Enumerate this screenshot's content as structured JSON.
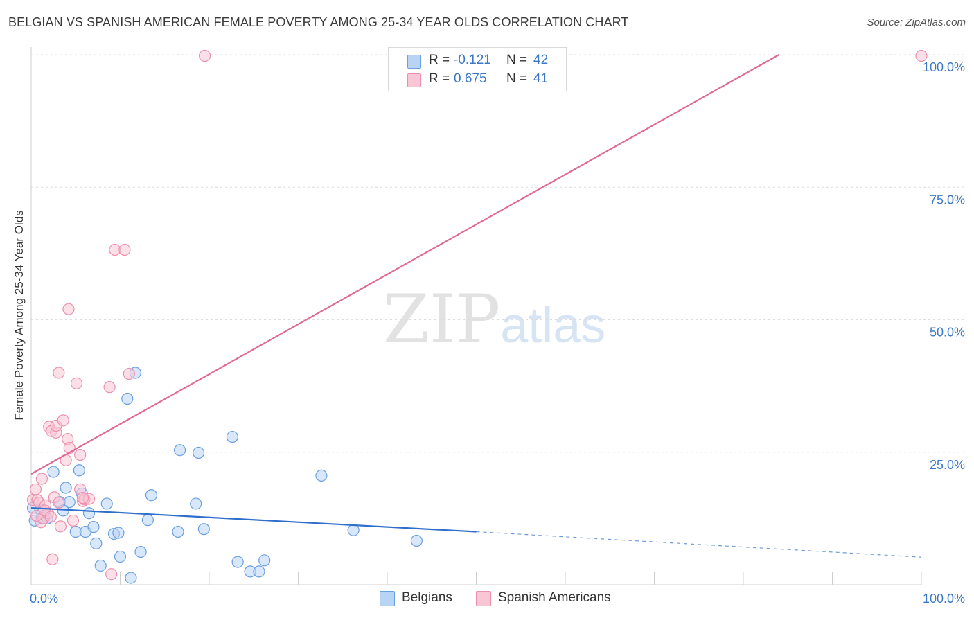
{
  "title": "BELGIAN VS SPANISH AMERICAN FEMALE POVERTY AMONG 25-34 YEAR OLDS CORRELATION CHART",
  "source": "Source: ZipAtlas.com",
  "watermark": {
    "zip": "ZIP",
    "atlas": "atlas"
  },
  "legend": {
    "rows": [
      {
        "r_label": "R =",
        "r_value": "-0.121",
        "n_label": "N =",
        "n_value": "42"
      },
      {
        "r_label": "R =",
        "r_value": "0.675",
        "n_label": "N =",
        "n_value": "41"
      }
    ]
  },
  "bottom_legend": [
    "Belgians",
    "Spanish Americans"
  ],
  "chart_data": {
    "type": "scatter",
    "title": "BELGIAN VS SPANISH AMERICAN FEMALE POVERTY AMONG 25-34 YEAR OLDS CORRELATION CHART",
    "xlabel": "",
    "ylabel": "Female Poverty Among 25-34 Year Olds",
    "xlim": [
      0,
      100
    ],
    "ylim": [
      0,
      100
    ],
    "x_tick_labels": [
      "0.0%",
      "100.0%"
    ],
    "y_ticks": [
      25,
      50,
      75,
      100
    ],
    "y_tick_labels": [
      "25.0%",
      "50.0%",
      "75.0%",
      "100.0%"
    ],
    "grid": true,
    "legend_position": "top-center",
    "colors": {
      "belgians_fill": "#b8d4f5",
      "belgians_stroke": "#6a9fe0",
      "belgians_line": "#2f6fcb",
      "spanish_fill": "#f9c6d6",
      "spanish_stroke": "#ec8fae",
      "spanish_line": "#e06a93",
      "tick_label": "#3b78c9"
    },
    "series": [
      {
        "name": "Belgians",
        "points": [
          [
            0.4,
            12.1
          ],
          [
            1.0,
            14.2
          ],
          [
            1.2,
            12.6
          ],
          [
            1.5,
            13.1
          ],
          [
            2.5,
            21.3
          ],
          [
            3.2,
            15.6
          ],
          [
            3.6,
            14.0
          ],
          [
            3.9,
            18.3
          ],
          [
            4.3,
            15.6
          ],
          [
            5.0,
            10.0
          ],
          [
            5.4,
            21.6
          ],
          [
            5.7,
            17.2
          ],
          [
            6.1,
            10.0
          ],
          [
            6.5,
            13.5
          ],
          [
            7.0,
            10.9
          ],
          [
            7.3,
            7.8
          ],
          [
            7.8,
            3.6
          ],
          [
            8.5,
            15.3
          ],
          [
            9.3,
            9.6
          ],
          [
            9.8,
            9.8
          ],
          [
            10.0,
            5.3
          ],
          [
            10.8,
            35.1
          ],
          [
            11.2,
            1.3
          ],
          [
            11.7,
            40.0
          ],
          [
            12.3,
            6.2
          ],
          [
            13.1,
            12.2
          ],
          [
            13.5,
            16.9
          ],
          [
            16.5,
            10.0
          ],
          [
            16.7,
            25.4
          ],
          [
            18.5,
            15.3
          ],
          [
            18.8,
            24.9
          ],
          [
            19.4,
            10.5
          ],
          [
            22.6,
            27.9
          ],
          [
            23.2,
            4.3
          ],
          [
            24.6,
            2.5
          ],
          [
            25.6,
            2.5
          ],
          [
            26.2,
            4.6
          ],
          [
            32.6,
            20.6
          ],
          [
            36.2,
            10.3
          ],
          [
            43.3,
            8.3
          ],
          [
            1.8,
            12.5
          ],
          [
            0.2,
            14.5
          ]
        ]
      },
      {
        "name": "Spanish Americans",
        "points": [
          [
            0.2,
            16.0
          ],
          [
            0.5,
            18.0
          ],
          [
            0.7,
            16.0
          ],
          [
            0.9,
            15.5
          ],
          [
            1.1,
            11.8
          ],
          [
            1.2,
            20.0
          ],
          [
            1.4,
            12.5
          ],
          [
            1.6,
            15.0
          ],
          [
            1.9,
            13.5
          ],
          [
            2.0,
            29.8
          ],
          [
            2.3,
            29.0
          ],
          [
            2.4,
            4.8
          ],
          [
            2.6,
            16.5
          ],
          [
            2.8,
            28.7
          ],
          [
            2.8,
            30.0
          ],
          [
            3.1,
            15.5
          ],
          [
            3.1,
            40.0
          ],
          [
            3.3,
            11.0
          ],
          [
            3.6,
            31.0
          ],
          [
            3.9,
            23.5
          ],
          [
            4.1,
            27.5
          ],
          [
            4.2,
            52.0
          ],
          [
            4.3,
            25.8
          ],
          [
            4.7,
            12.1
          ],
          [
            5.1,
            38.0
          ],
          [
            5.5,
            24.5
          ],
          [
            5.5,
            18.0
          ],
          [
            5.8,
            15.8
          ],
          [
            6.0,
            16.1
          ],
          [
            6.5,
            16.2
          ],
          [
            8.8,
            37.3
          ],
          [
            9.0,
            2.0
          ],
          [
            9.4,
            63.2
          ],
          [
            10.5,
            63.2
          ],
          [
            11.0,
            39.8
          ],
          [
            19.5,
            99.8
          ],
          [
            100.0,
            99.8
          ],
          [
            0.6,
            13.0
          ],
          [
            1.5,
            14.0
          ],
          [
            2.2,
            12.8
          ],
          [
            5.8,
            16.4
          ]
        ]
      }
    ],
    "trend_lines": [
      {
        "series": "Belgians",
        "solid_from": [
          0,
          14.5
        ],
        "solid_to": [
          50,
          10.0
        ],
        "dashed_to": [
          100,
          5.2
        ]
      },
      {
        "series": "Spanish Americans",
        "from": [
          0,
          20.9
        ],
        "to": [
          84,
          100.0
        ]
      }
    ]
  }
}
